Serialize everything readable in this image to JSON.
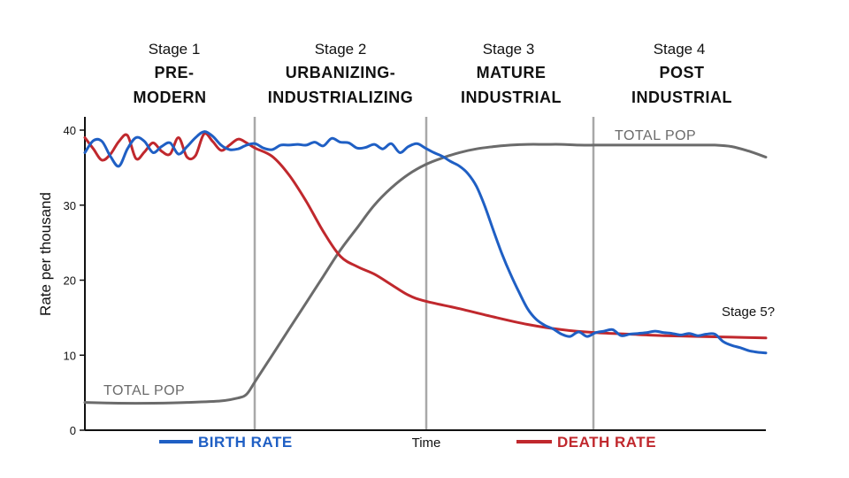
{
  "chart_data": {
    "type": "line",
    "xlabel": "Time",
    "ylabel": "Rate per thousand",
    "ylim": [
      0,
      40
    ],
    "y_ticks": [
      "0",
      "10",
      "20",
      "30",
      "40"
    ],
    "grid": false,
    "legend_placement": "bottom",
    "stages": [
      {
        "number": "Stage 1",
        "name_line1": "PRE-",
        "name_line2": "MODERN"
      },
      {
        "number": "Stage 2",
        "name_line1": "URBANIZING-",
        "name_line2": "INDUSTRIALIZING"
      },
      {
        "number": "Stage 3",
        "name_line1": "MATURE",
        "name_line2": "INDUSTRIAL"
      },
      {
        "number": "Stage 4",
        "name_line1": "POST",
        "name_line2": "INDUSTRIAL"
      }
    ],
    "stage5_label": "Stage 5?",
    "total_pop_label_low": "TOTAL POP",
    "total_pop_label_high": "TOTAL POP",
    "series": [
      {
        "name": "BIRTH RATE",
        "color": "#1f5fc4",
        "x": [
          0,
          0.5,
          1.0,
          1.5,
          2.0,
          2.5,
          3.0,
          3.5,
          4.0,
          4.5,
          5.0,
          5.5,
          6.0,
          6.5,
          7.0,
          7.5,
          8.0,
          8.5,
          9.0,
          9.5,
          10.0,
          10.5,
          11.0,
          11.5,
          12.0,
          12.5,
          13.0,
          13.5,
          14.0,
          14.5,
          15.0,
          15.5,
          16.0,
          16.5,
          17.0,
          17.5,
          18.0,
          18.5,
          19.0,
          19.5,
          20.0,
          20.5,
          21.0,
          21.5,
          22.0,
          22.5,
          23.0,
          23.5,
          24.0,
          24.5,
          25.0,
          25.5,
          26.0,
          26.5,
          27.0,
          27.5,
          28.0,
          28.5,
          29.0,
          29.5,
          30.0,
          30.5,
          31.0,
          31.5,
          32.0,
          32.5,
          33.0,
          33.5,
          34.0,
          34.5,
          35.0,
          35.5,
          36.0,
          36.5,
          37.0,
          37.5,
          38.0,
          38.5,
          39.0,
          39.5,
          40.0
        ],
        "values": [
          37.0,
          38.6,
          38.5,
          36.5,
          35.2,
          37.5,
          39.0,
          38.5,
          37.0,
          37.8,
          38.3,
          36.8,
          37.8,
          39.0,
          39.8,
          39.2,
          38.0,
          37.4,
          37.5,
          38.0,
          38.2,
          37.6,
          37.4,
          38.0,
          38.0,
          38.1,
          38.0,
          38.4,
          37.9,
          38.9,
          38.4,
          38.3,
          37.6,
          37.7,
          38.1,
          37.5,
          38.2,
          37.0,
          37.8,
          38.2,
          37.6,
          37.0,
          36.5,
          35.8,
          35.2,
          34.2,
          32.5,
          29.8,
          26.6,
          23.5,
          20.8,
          18.4,
          16.2,
          14.8,
          14.0,
          13.5,
          12.8,
          12.5,
          13.1,
          12.5,
          13.0,
          13.2,
          13.4,
          12.6,
          12.8,
          12.9,
          13.0,
          13.2,
          13.0,
          12.9,
          12.7,
          12.9,
          12.6,
          12.8,
          12.8,
          11.8,
          11.3,
          11.0,
          10.6,
          10.4,
          10.3
        ]
      },
      {
        "name": "DEATH RATE",
        "color": "#c0282d",
        "x": [
          0,
          0.5,
          1.0,
          1.5,
          2.0,
          2.5,
          3.0,
          3.5,
          4.0,
          4.5,
          5.0,
          5.5,
          6.0,
          6.5,
          7.0,
          7.5,
          8.0,
          8.5,
          9.0,
          9.5,
          10.0,
          11.0,
          12.0,
          13.0,
          14.0,
          15.0,
          16.0,
          17.0,
          18.0,
          19.0,
          20.0,
          22.0,
          24.0,
          26.0,
          28.0,
          30.0,
          32.0,
          34.0,
          36.0,
          38.0,
          40.0
        ],
        "values": [
          39.0,
          37.5,
          36.0,
          36.8,
          38.5,
          39.3,
          36.2,
          37.1,
          38.3,
          37.2,
          36.8,
          39.0,
          36.4,
          36.6,
          39.5,
          38.5,
          37.3,
          38.0,
          38.8,
          38.3,
          37.6,
          36.5,
          34.0,
          30.5,
          26.5,
          23.2,
          21.8,
          20.8,
          19.4,
          18.0,
          17.2,
          16.2,
          15.1,
          14.1,
          13.4,
          13.0,
          12.8,
          12.6,
          12.5,
          12.4,
          12.3
        ]
      },
      {
        "color": "#6b6b6b",
        "x": [
          0,
          2,
          4,
          6,
          8,
          9,
          9.5,
          10,
          11,
          12,
          13,
          14,
          15,
          16,
          17,
          18,
          19,
          20,
          21,
          22,
          23,
          24,
          25,
          26,
          27,
          28,
          29,
          30,
          31,
          32,
          33,
          34,
          35,
          36,
          37,
          38,
          39,
          40
        ],
        "values": [
          3.7,
          3.6,
          3.6,
          3.7,
          3.9,
          4.3,
          4.8,
          6.5,
          10.0,
          13.5,
          17.0,
          20.5,
          24.0,
          27.0,
          30.0,
          32.3,
          34.1,
          35.4,
          36.3,
          37.0,
          37.5,
          37.8,
          38.0,
          38.1,
          38.1,
          38.1,
          38.0,
          38.0,
          38.0,
          38.0,
          38.0,
          38.0,
          38.0,
          38.0,
          38.0,
          37.8,
          37.2,
          36.4
        ]
      }
    ]
  }
}
